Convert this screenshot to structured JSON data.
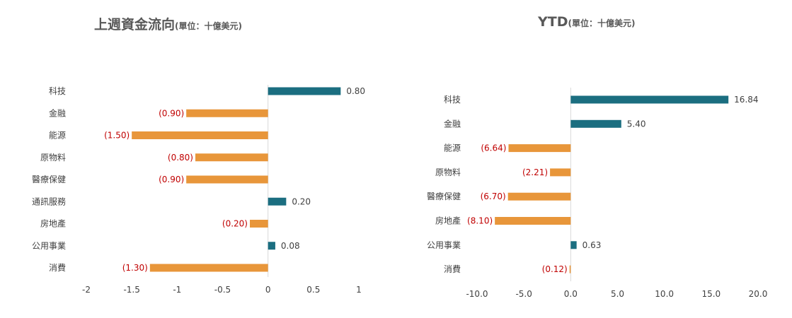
{
  "colors": {
    "positive": "#1B6E80",
    "negative": "#E8963A",
    "negative_label": "#C00000",
    "text": "#404040",
    "axis": "#D9D9D9"
  },
  "chart_data": [
    {
      "type": "bar",
      "orientation": "horizontal",
      "title": "上週資金流向",
      "title_unit": "(單位：十億美元)",
      "categories": [
        "科技",
        "金融",
        "能源",
        "原物料",
        "醫療保健",
        "通訊服務",
        "房地產",
        "公用事業",
        "消費"
      ],
      "values": [
        0.8,
        -0.9,
        -1.5,
        -0.8,
        -0.9,
        0.2,
        -0.2,
        0.08,
        -1.3
      ],
      "data_labels": [
        "0.80",
        "(0.90)",
        "(1.50)",
        "(0.80)",
        "(0.90)",
        "0.20",
        "(0.20)",
        "0.08",
        "(1.30)"
      ],
      "xlim": [
        -2,
        1
      ],
      "xticks": [
        -2,
        -1.5,
        -1,
        -0.5,
        0,
        0.5,
        1
      ],
      "xtick_labels": [
        "-2",
        "-1.5",
        "-1",
        "-0.5",
        "0",
        "0.5",
        "1"
      ],
      "grid": false,
      "legend": "none"
    },
    {
      "type": "bar",
      "orientation": "horizontal",
      "title": "YTD",
      "title_unit": "(單位：十億美元)",
      "categories": [
        "科技",
        "金融",
        "能源",
        "原物料",
        "醫療保健",
        "房地產",
        "公用事業",
        "消費"
      ],
      "values": [
        16.84,
        5.4,
        -6.64,
        -2.21,
        -6.7,
        -8.1,
        0.63,
        -0.12
      ],
      "data_labels": [
        "16.84",
        "5.40",
        "(6.64)",
        "(2.21)",
        "(6.70)",
        "(8.10)",
        "0.63",
        "(0.12)"
      ],
      "xlim": [
        -10,
        20
      ],
      "xticks": [
        -10,
        -5,
        0,
        5,
        10,
        15,
        20
      ],
      "xtick_labels": [
        "-10.0",
        "-5.0",
        "0.0",
        "5.0",
        "10.0",
        "15.0",
        "20.0"
      ],
      "grid": false,
      "legend": "none"
    }
  ]
}
